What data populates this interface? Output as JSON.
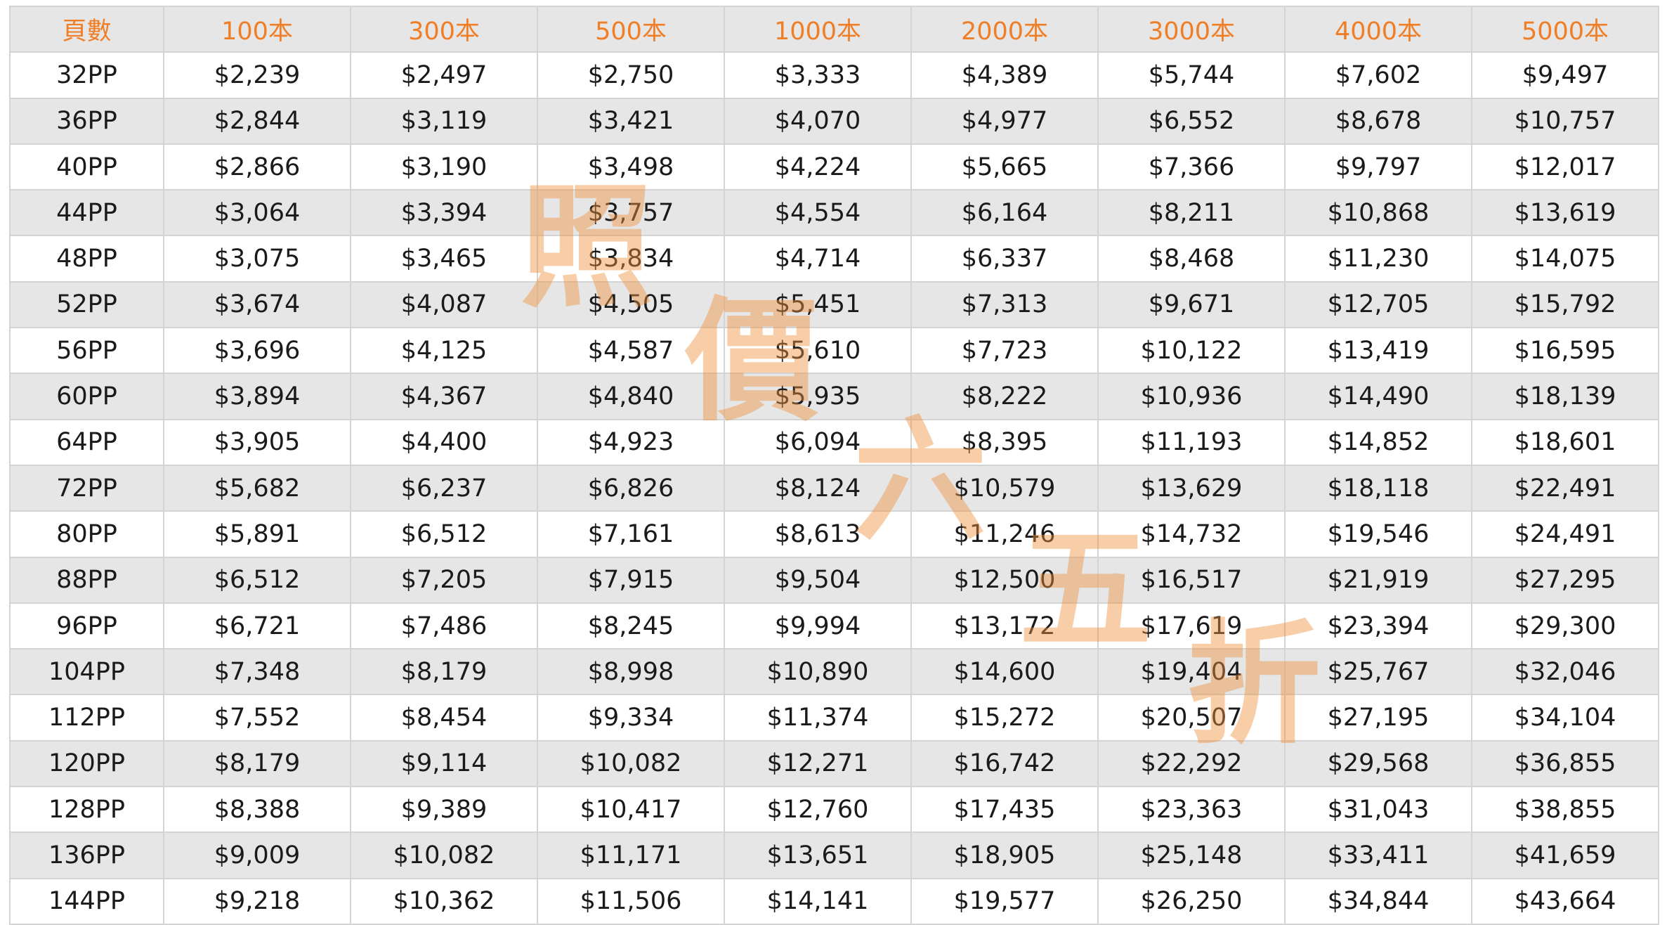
{
  "table": {
    "header": [
      "頁數",
      "100本",
      "300本",
      "500本",
      "1000本",
      "2000本",
      "3000本",
      "4000本",
      "5000本"
    ],
    "rows": [
      [
        "32PP",
        "$2,239",
        "$2,497",
        "$2,750",
        "$3,333",
        "$4,389",
        "$5,744",
        "$7,602",
        "$9,497"
      ],
      [
        "36PP",
        "$2,844",
        "$3,119",
        "$3,421",
        "$4,070",
        "$4,977",
        "$6,552",
        "$8,678",
        "$10,757"
      ],
      [
        "40PP",
        "$2,866",
        "$3,190",
        "$3,498",
        "$4,224",
        "$5,665",
        "$7,366",
        "$9,797",
        "$12,017"
      ],
      [
        "44PP",
        "$3,064",
        "$3,394",
        "$3,757",
        "$4,554",
        "$6,164",
        "$8,211",
        "$10,868",
        "$13,619"
      ],
      [
        "48PP",
        "$3,075",
        "$3,465",
        "$3,834",
        "$4,714",
        "$6,337",
        "$8,468",
        "$11,230",
        "$14,075"
      ],
      [
        "52PP",
        "$3,674",
        "$4,087",
        "$4,505",
        "$5,451",
        "$7,313",
        "$9,671",
        "$12,705",
        "$15,792"
      ],
      [
        "56PP",
        "$3,696",
        "$4,125",
        "$4,587",
        "$5,610",
        "$7,723",
        "$10,122",
        "$13,419",
        "$16,595"
      ],
      [
        "60PP",
        "$3,894",
        "$4,367",
        "$4,840",
        "$5,935",
        "$8,222",
        "$10,936",
        "$14,490",
        "$18,139"
      ],
      [
        "64PP",
        "$3,905",
        "$4,400",
        "$4,923",
        "$6,094",
        "$8,395",
        "$11,193",
        "$14,852",
        "$18,601"
      ],
      [
        "72PP",
        "$5,682",
        "$6,237",
        "$6,826",
        "$8,124",
        "$10,579",
        "$13,629",
        "$18,118",
        "$22,491"
      ],
      [
        "80PP",
        "$5,891",
        "$6,512",
        "$7,161",
        "$8,613",
        "$11,246",
        "$14,732",
        "$19,546",
        "$24,491"
      ],
      [
        "88PP",
        "$6,512",
        "$7,205",
        "$7,915",
        "$9,504",
        "$12,500",
        "$16,517",
        "$21,919",
        "$27,295"
      ],
      [
        "96PP",
        "$6,721",
        "$7,486",
        "$8,245",
        "$9,994",
        "$13,172",
        "$17,619",
        "$23,394",
        "$29,300"
      ],
      [
        "104PP",
        "$7,348",
        "$8,179",
        "$8,998",
        "$10,890",
        "$14,600",
        "$19,404",
        "$25,767",
        "$32,046"
      ],
      [
        "112PP",
        "$7,552",
        "$8,454",
        "$9,334",
        "$11,374",
        "$15,272",
        "$20,507",
        "$27,195",
        "$34,104"
      ],
      [
        "120PP",
        "$8,179",
        "$9,114",
        "$10,082",
        "$12,271",
        "$16,742",
        "$22,292",
        "$29,568",
        "$36,855"
      ],
      [
        "128PP",
        "$8,388",
        "$9,389",
        "$10,417",
        "$12,760",
        "$17,435",
        "$23,363",
        "$31,043",
        "$38,855"
      ],
      [
        "136PP",
        "$9,009",
        "$10,082",
        "$11,171",
        "$13,651",
        "$18,905",
        "$25,148",
        "$33,411",
        "$41,659"
      ],
      [
        "144PP",
        "$9,218",
        "$10,362",
        "$11,506",
        "$14,141",
        "$19,577",
        "$26,250",
        "$34,844",
        "$43,664"
      ]
    ]
  },
  "watermark": {
    "chars": [
      "照",
      "價",
      "六",
      "五",
      "折"
    ],
    "color": "#ef923e"
  }
}
